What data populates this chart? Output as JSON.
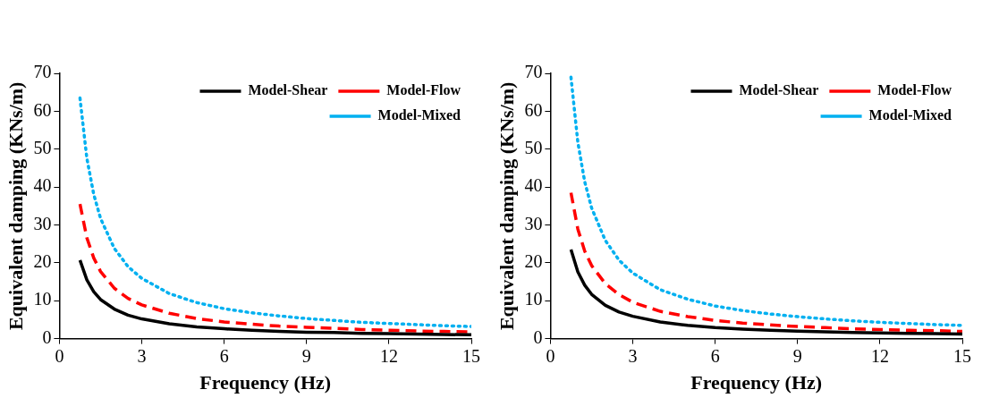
{
  "chart_data": [
    {
      "type": "line",
      "xlabel": "Frequency (Hz)",
      "ylabel": "Equivalent damping (KNs/m)",
      "xlim": [
        0,
        15
      ],
      "xticks": [
        0,
        3,
        6,
        9,
        12,
        15
      ],
      "ylim": [
        0,
        70
      ],
      "yticks": [
        0,
        10,
        20,
        30,
        40,
        50,
        60,
        70
      ],
      "legend": "top right",
      "marker": "none",
      "grid": false,
      "x": [
        0.75,
        1,
        1.25,
        1.5,
        2,
        2.5,
        3,
        4,
        5,
        6,
        7,
        8,
        9,
        10,
        11,
        12,
        13,
        14,
        15
      ],
      "series": [
        {
          "name": "Model-Shear",
          "color": "#000000",
          "line_style": "solid",
          "values": [
            20.7,
            15.5,
            12.4,
            10.3,
            7.8,
            6.2,
            5.2,
            3.9,
            3.1,
            2.6,
            2.2,
            1.9,
            1.7,
            1.6,
            1.4,
            1.3,
            1.2,
            1.1,
            1.0
          ]
        },
        {
          "name": "Model-Flow",
          "color": "#ff0000",
          "line_style": "dashed",
          "values": [
            35.5,
            26.6,
            21.3,
            17.7,
            13.3,
            10.6,
            8.9,
            6.7,
            5.3,
            4.4,
            3.8,
            3.3,
            3.0,
            2.7,
            2.4,
            2.2,
            2.0,
            1.9,
            1.8
          ]
        },
        {
          "name": "Model-Mixed",
          "color": "#00b0f0",
          "line_style": "dotted",
          "values": [
            63.5,
            47.6,
            38.1,
            31.7,
            23.8,
            19.0,
            15.9,
            11.9,
            9.5,
            7.9,
            6.8,
            6.0,
            5.3,
            4.8,
            4.3,
            4.0,
            3.7,
            3.4,
            3.2
          ]
        }
      ]
    },
    {
      "type": "line",
      "xlabel": "Frequency (Hz)",
      "ylabel": "Equivalent damping (KNs/m)",
      "xlim": [
        0,
        15
      ],
      "xticks": [
        0,
        3,
        6,
        9,
        12,
        15
      ],
      "ylim": [
        0,
        70
      ],
      "yticks": [
        0,
        10,
        20,
        30,
        40,
        50,
        60,
        70
      ],
      "legend": "top right",
      "marker": "none",
      "grid": false,
      "x": [
        0.75,
        1,
        1.25,
        1.5,
        2,
        2.5,
        3,
        4,
        5,
        6,
        7,
        8,
        9,
        10,
        11,
        12,
        13,
        14,
        15
      ],
      "series": [
        {
          "name": "Model-Shear",
          "color": "#000000",
          "line_style": "solid",
          "values": [
            23.5,
            17.6,
            14.1,
            11.7,
            8.8,
            7.0,
            5.9,
            4.4,
            3.5,
            2.9,
            2.5,
            2.2,
            2.0,
            1.8,
            1.6,
            1.5,
            1.4,
            1.3,
            1.2
          ]
        },
        {
          "name": "Model-Flow",
          "color": "#ff0000",
          "line_style": "dashed",
          "values": [
            38.5,
            28.9,
            23.1,
            19.3,
            14.5,
            11.6,
            9.6,
            7.2,
            5.8,
            4.8,
            4.1,
            3.6,
            3.2,
            2.9,
            2.6,
            2.4,
            2.2,
            2.1,
            1.9
          ]
        },
        {
          "name": "Model-Mixed",
          "color": "#00b0f0",
          "line_style": "dotted",
          "values": [
            69.0,
            51.8,
            41.4,
            34.5,
            25.9,
            20.7,
            17.3,
            12.9,
            10.4,
            8.6,
            7.4,
            6.5,
            5.8,
            5.2,
            4.7,
            4.3,
            4.0,
            3.7,
            3.5
          ]
        }
      ]
    }
  ]
}
